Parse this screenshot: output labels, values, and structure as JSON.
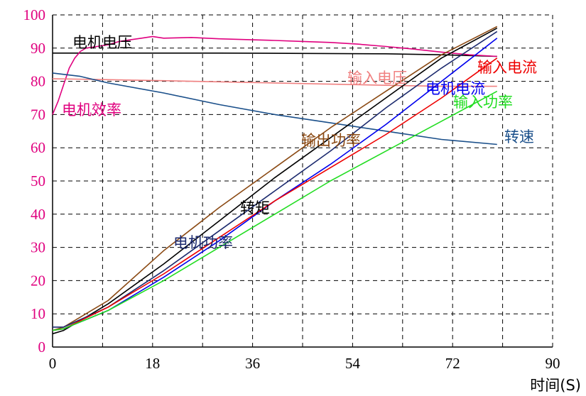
{
  "chart_data": {
    "type": "line",
    "title": "",
    "xlabel": "时间(S)",
    "ylabel": "",
    "xlim": [
      0,
      90
    ],
    "ylim": [
      0,
      100
    ],
    "xticks": [
      0,
      18,
      36,
      54,
      72,
      90
    ],
    "yticks": [
      0,
      10,
      20,
      30,
      40,
      50,
      60,
      70,
      80,
      90,
      100
    ],
    "grid": "dashed",
    "legend": "inline labels",
    "colors": {
      "y_axis_ticks": "#e0007f",
      "x_axis_ticks": "#000000"
    },
    "series": [
      {
        "name": "电机电压",
        "color": "#000000",
        "x": [
          0,
          30,
          60,
          70,
          80
        ],
        "y": [
          88.5,
          88.5,
          88.3,
          88,
          87.5
        ]
      },
      {
        "name": "电机效率",
        "color": "#e0007f",
        "x": [
          0,
          1,
          2,
          3,
          4,
          5,
          6,
          8,
          10,
          12,
          14,
          16,
          18,
          20,
          25,
          30,
          36,
          40,
          45,
          50,
          55,
          60,
          65,
          70,
          75,
          80
        ],
        "y": [
          70,
          74,
          79,
          84,
          87,
          89,
          90,
          90.5,
          91,
          92,
          92.5,
          93,
          93.5,
          93,
          93.2,
          92.8,
          92.5,
          92.3,
          92,
          91.7,
          91.2,
          90.5,
          89.7,
          88.8,
          88,
          87.5
        ]
      },
      {
        "name": "输入电压",
        "color": "#f08080",
        "x": [
          0,
          20,
          40,
          60,
          70,
          80
        ],
        "y": [
          80.8,
          80.2,
          79.5,
          78.8,
          78.5,
          78.5
        ]
      },
      {
        "name": "转速",
        "color": "#1a4f8a",
        "x": [
          0,
          5,
          10,
          20,
          30,
          40,
          50,
          60,
          70,
          80
        ],
        "y": [
          82.5,
          81.5,
          79.5,
          76.5,
          73,
          70,
          67.5,
          65,
          62.5,
          61
        ]
      },
      {
        "name": "输出功率",
        "color": "#8b4a14",
        "x": [
          0,
          2,
          10,
          20,
          30,
          40,
          50,
          60,
          70,
          80
        ],
        "y": [
          5,
          6,
          14,
          29,
          42,
          54,
          66,
          77,
          88,
          96.5
        ]
      },
      {
        "name": "转矩",
        "color": "#000000",
        "x": [
          0,
          2,
          10,
          20,
          30,
          40,
          50,
          60,
          70,
          80
        ],
        "y": [
          4,
          5,
          13,
          25,
          38,
          51,
          63,
          75,
          87,
          96
        ]
      },
      {
        "name": "电机功率",
        "color": "#1c2a6e",
        "x": [
          0,
          2,
          10,
          20,
          30,
          40,
          50,
          60,
          70,
          80
        ],
        "y": [
          6,
          6,
          12,
          23,
          35,
          47,
          59,
          72,
          84,
          95
        ]
      },
      {
        "name": "电机电流",
        "color": "#0000ee",
        "x": [
          0,
          2,
          10,
          20,
          30,
          40,
          50,
          60,
          70,
          80
        ],
        "y": [
          5,
          5.5,
          11,
          21,
          32,
          44,
          55,
          67,
          80,
          93
        ]
      },
      {
        "name": "输入电流",
        "color": "#ee0000",
        "x": [
          0,
          2,
          10,
          20,
          30,
          40,
          50,
          60,
          70,
          80
        ],
        "y": [
          5,
          5.5,
          12,
          22,
          33,
          44,
          54,
          64,
          75,
          87
        ]
      },
      {
        "name": "输入功率",
        "color": "#22dd22",
        "x": [
          0,
          2,
          10,
          20,
          30,
          40,
          50,
          60,
          70,
          80
        ],
        "y": [
          5,
          5.5,
          11,
          20,
          30,
          40,
          50,
          59,
          68,
          77
        ]
      }
    ]
  }
}
